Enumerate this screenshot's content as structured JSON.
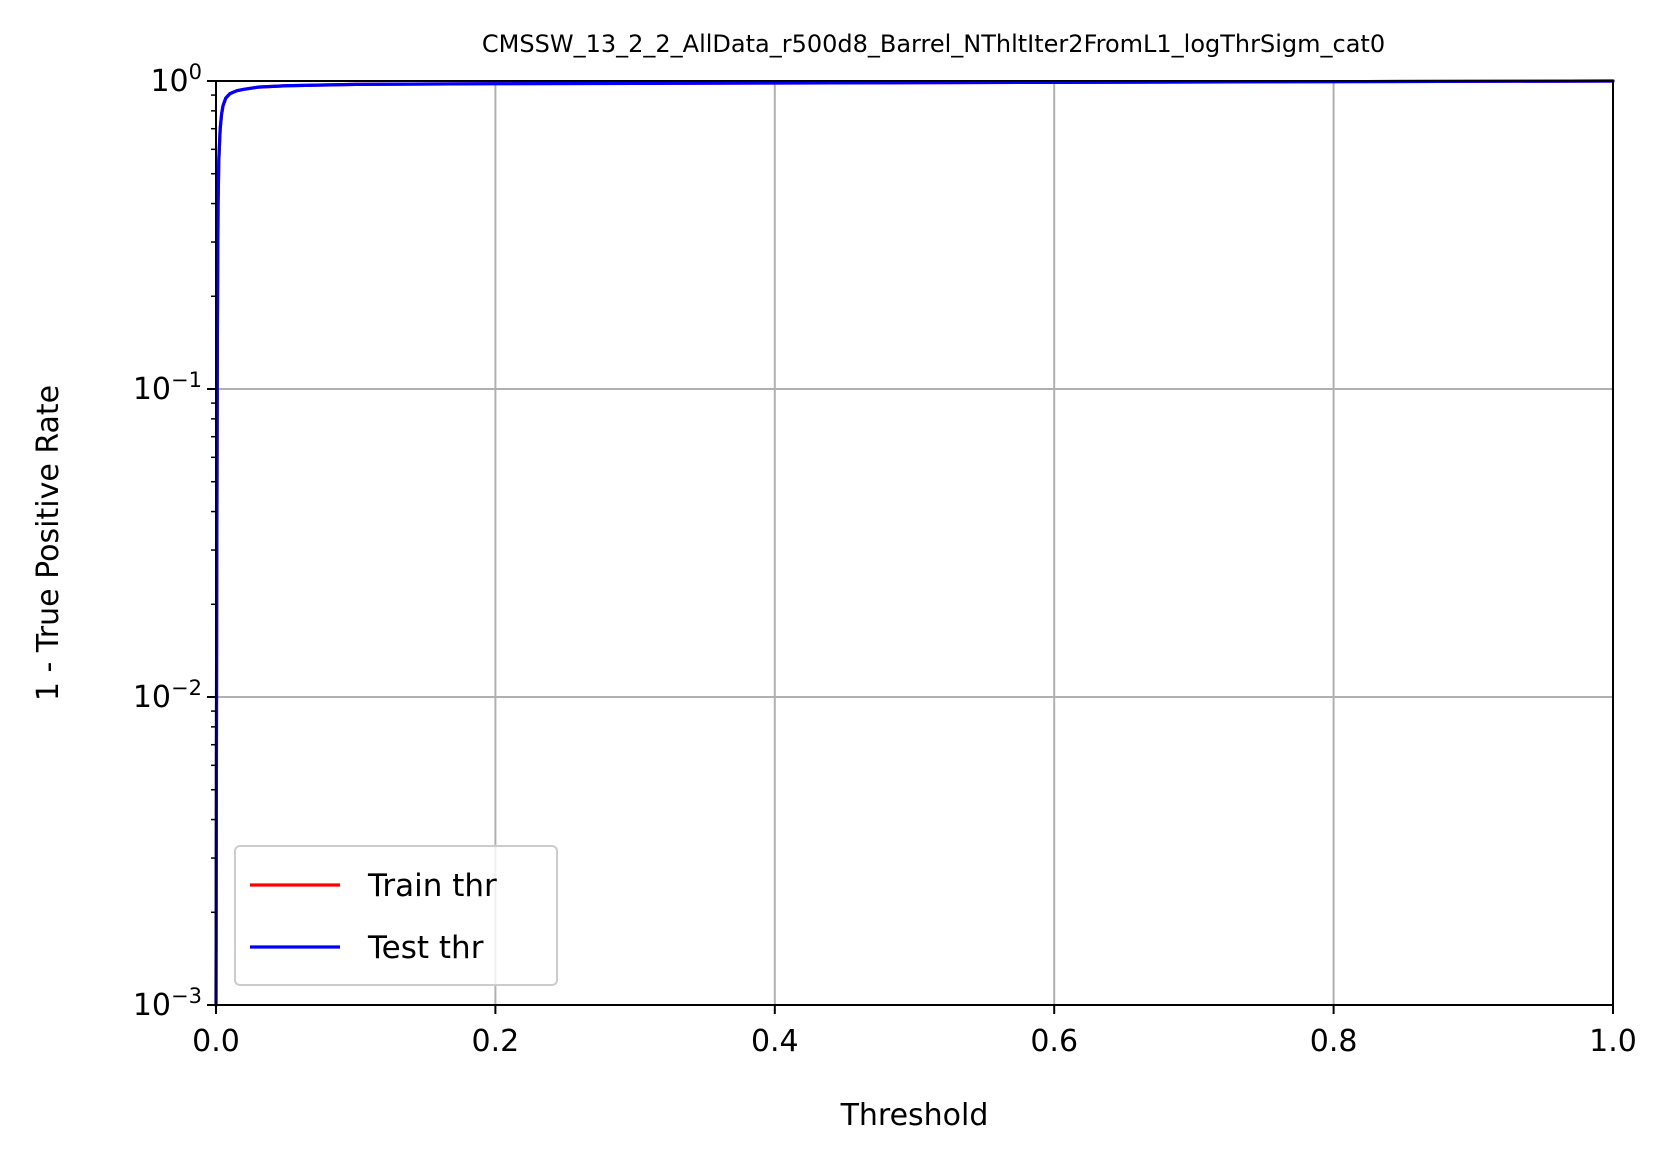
{
  "chart_data": {
    "type": "line",
    "title": "CMSSW_13_2_2_AllData_r500d8_Barrel_NThltIter2FromL1_logThrSigm_cat0",
    "xlabel": "Threshold",
    "ylabel": "1 - True Positive Rate",
    "xlim": [
      0.0,
      1.0
    ],
    "ylim": [
      0.001,
      1.0
    ],
    "yscale": "log",
    "grid": true,
    "legend_position": "lower-left",
    "x_ticks": [
      {
        "value": 0.0,
        "label": "0.0"
      },
      {
        "value": 0.2,
        "label": "0.2"
      },
      {
        "value": 0.4,
        "label": "0.4"
      },
      {
        "value": 0.6,
        "label": "0.6"
      },
      {
        "value": 0.8,
        "label": "0.8"
      },
      {
        "value": 1.0,
        "label": "1.0"
      }
    ],
    "y_ticks": [
      {
        "value": 1.0,
        "base": "10",
        "exp": "0"
      },
      {
        "value": 0.1,
        "base": "10",
        "exp": "−1"
      },
      {
        "value": 0.01,
        "base": "10",
        "exp": "−2"
      },
      {
        "value": 0.001,
        "base": "10",
        "exp": "−3"
      }
    ],
    "series": [
      {
        "name": "Train thr",
        "color": "#ff0000",
        "x": [
          0.0,
          0.0005,
          0.001,
          0.0015,
          0.002,
          0.003,
          0.004,
          0.005,
          0.007,
          0.01,
          0.015,
          0.02,
          0.03,
          0.05,
          0.1,
          0.2,
          0.4,
          0.6,
          0.8,
          1.0
        ],
        "y": [
          0.001,
          0.02,
          0.15,
          0.4,
          0.55,
          0.7,
          0.78,
          0.83,
          0.88,
          0.91,
          0.93,
          0.94,
          0.955,
          0.965,
          0.975,
          0.98,
          0.985,
          0.99,
          0.995,
          1.0
        ]
      },
      {
        "name": "Test thr",
        "color": "#0000ff",
        "x": [
          0.0,
          0.0005,
          0.001,
          0.0015,
          0.002,
          0.003,
          0.004,
          0.005,
          0.007,
          0.01,
          0.015,
          0.02,
          0.03,
          0.05,
          0.1,
          0.2,
          0.4,
          0.6,
          0.8,
          1.0
        ],
        "y": [
          0.001,
          0.02,
          0.15,
          0.4,
          0.55,
          0.7,
          0.78,
          0.83,
          0.88,
          0.91,
          0.93,
          0.94,
          0.955,
          0.965,
          0.975,
          0.98,
          0.985,
          0.99,
          0.995,
          1.0
        ]
      }
    ]
  }
}
